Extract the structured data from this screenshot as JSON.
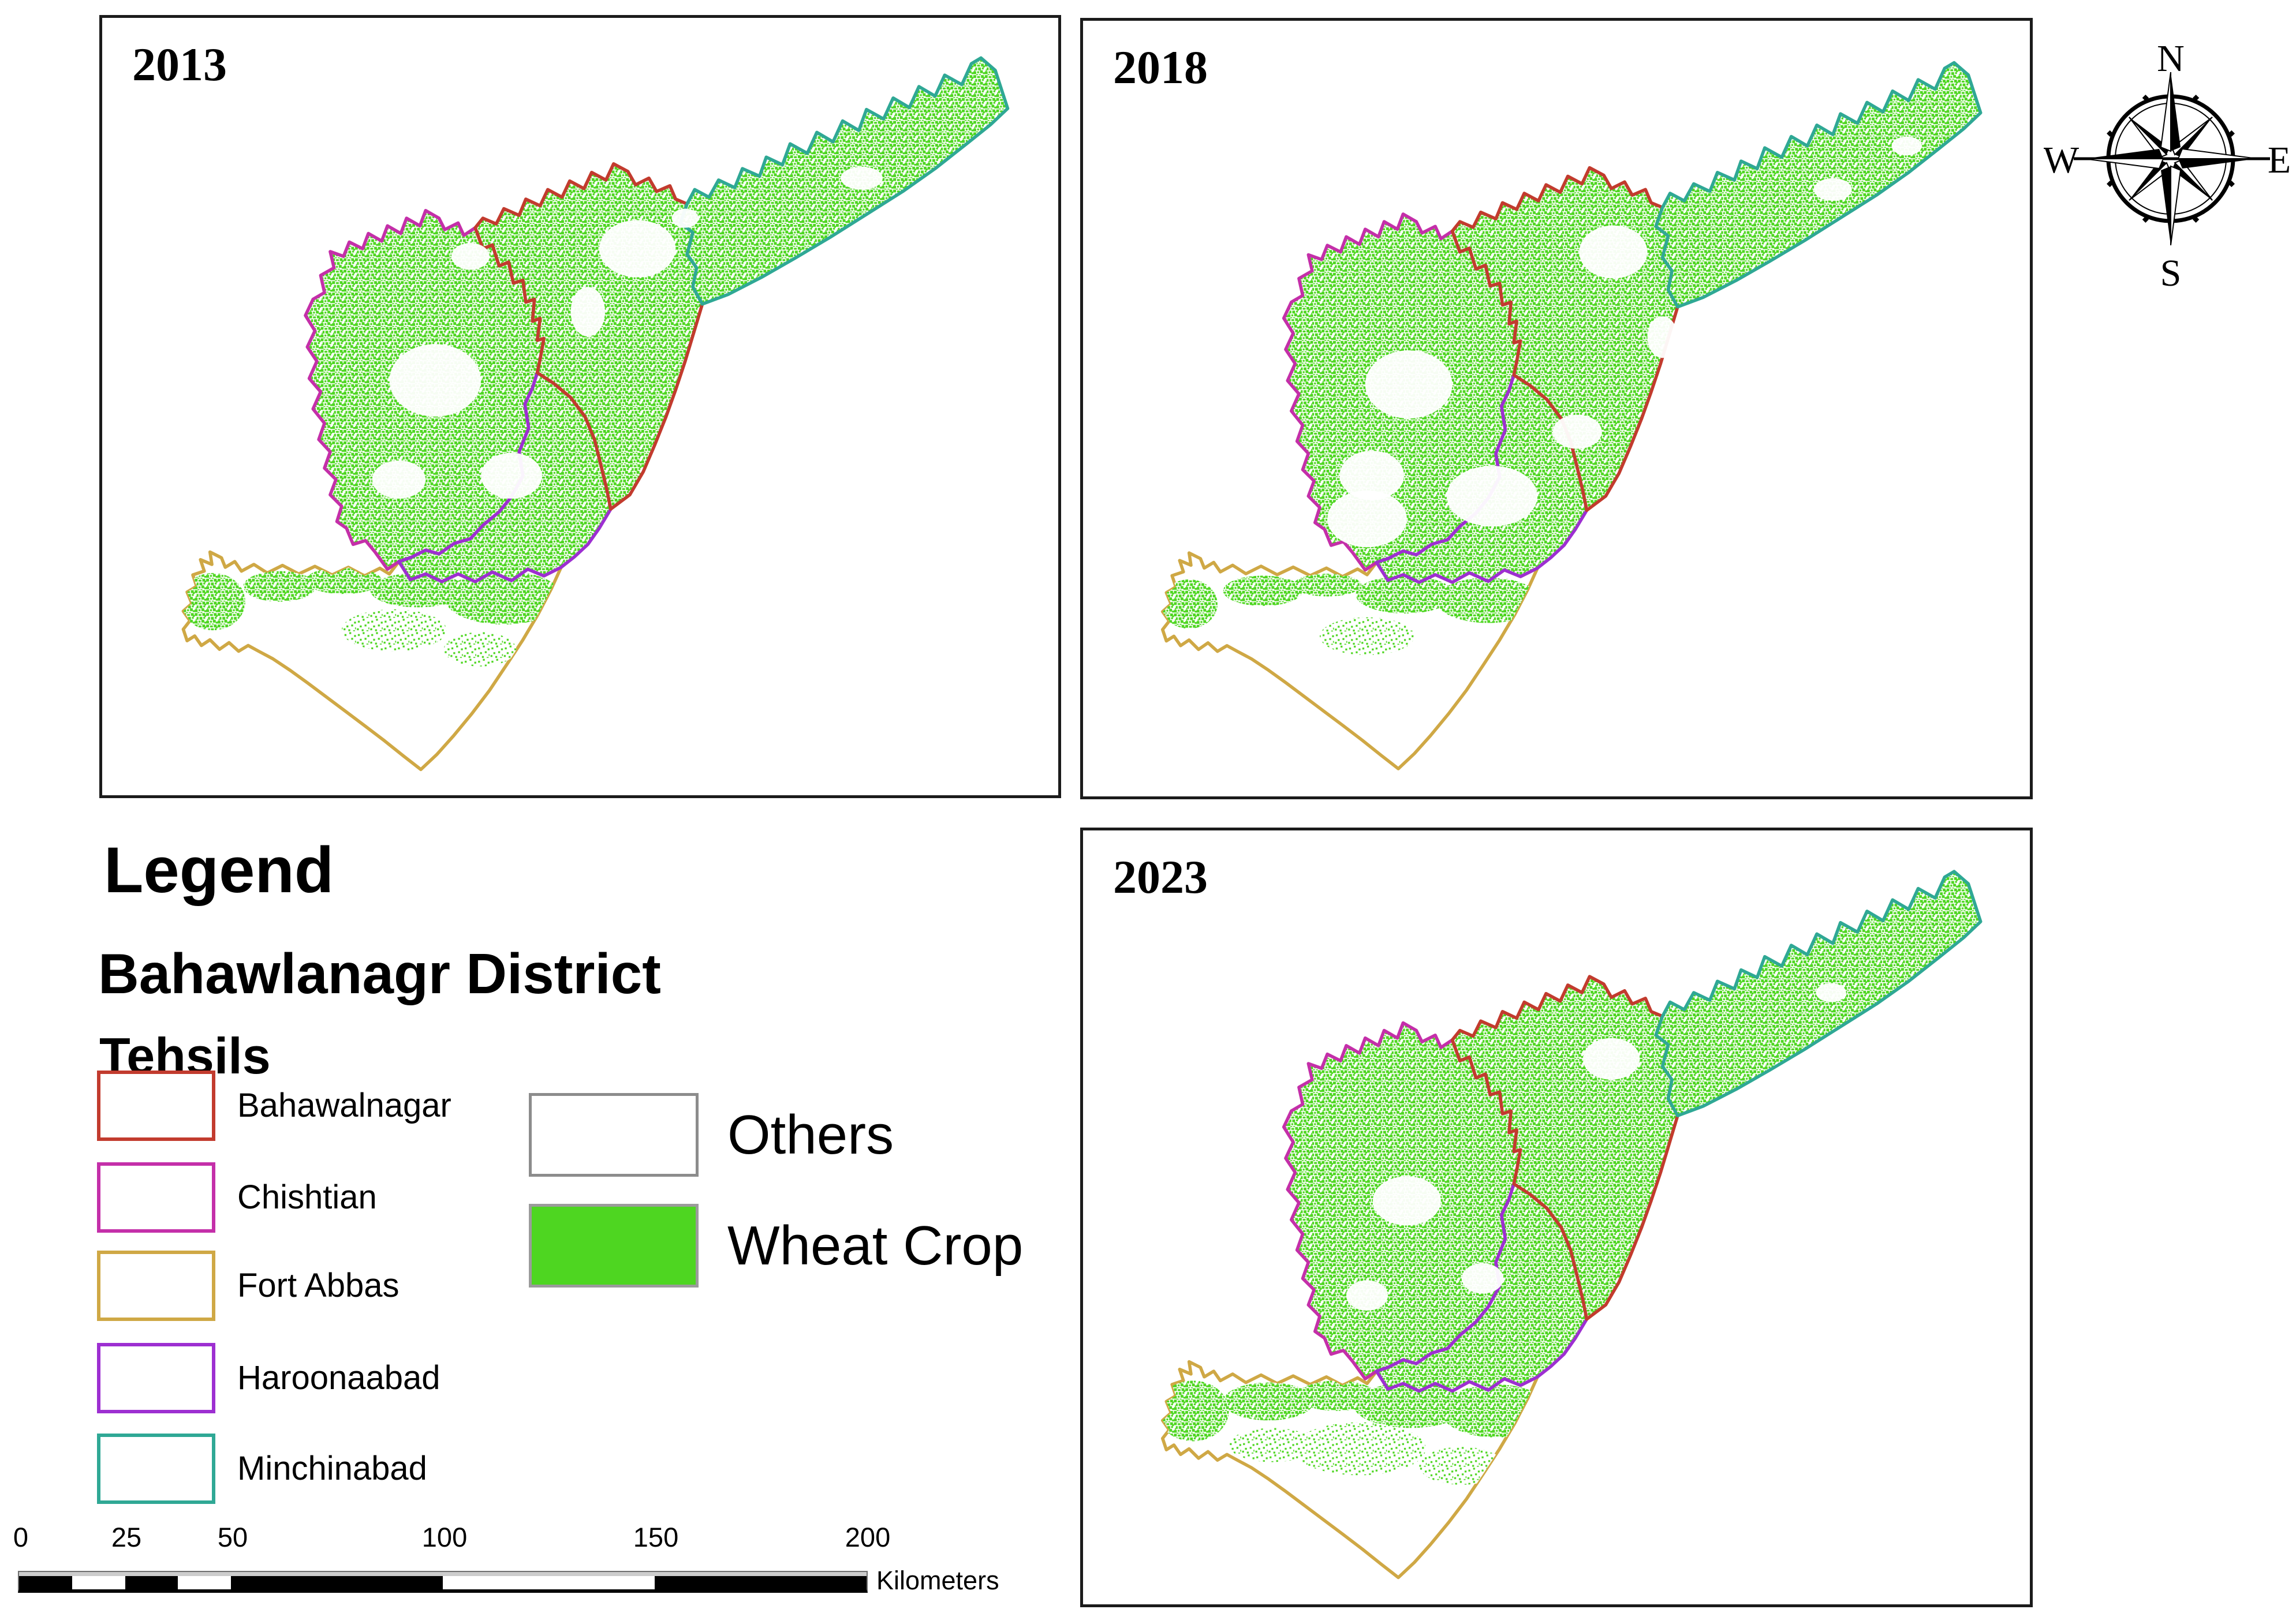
{
  "page": {
    "background": "#ffffff",
    "panel_border": "#1b1b1b"
  },
  "maps": [
    {
      "year": "2013"
    },
    {
      "year": "2018"
    },
    {
      "year": "2023"
    }
  ],
  "compass": {
    "north": "N",
    "east": "E",
    "south": "S",
    "west": "W"
  },
  "legend": {
    "title": "Legend",
    "district_heading": "Bahawlanagr District",
    "tehsils_heading": "Tehsils",
    "tehsils": [
      {
        "name": "Bahawalnagar",
        "outline_color": "#c23b2e"
      },
      {
        "name": "Chishtian",
        "outline_color": "#c42fa9"
      },
      {
        "name": "Fort Abbas",
        "outline_color": "#cfa845"
      },
      {
        "name": "Haroonaabad",
        "outline_color": "#9d2fd1"
      },
      {
        "name": "Minchinabad",
        "outline_color": "#2fa895"
      }
    ],
    "classes": [
      {
        "name": "Others",
        "fill": "#ffffff",
        "outline_color": "#8c8c8c"
      },
      {
        "name": "Wheat Crop",
        "fill": "#4ed621",
        "outline_color": "#9b9b9b"
      }
    ]
  },
  "scalebar": {
    "ticks": [
      "0",
      "25",
      "50",
      "100",
      "150",
      "200"
    ],
    "unit": "Kilometers",
    "max_km": 200
  }
}
